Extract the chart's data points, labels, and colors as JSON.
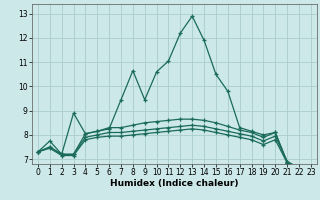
{
  "xlabel": "Humidex (Indice chaleur)",
  "bg_color": "#cce8e8",
  "grid_color": "#aacccc",
  "line_color": "#1a6b5a",
  "xlim": [
    -0.5,
    23.5
  ],
  "ylim": [
    6.8,
    13.4
  ],
  "yticks": [
    7,
    8,
    9,
    10,
    11,
    12,
    13
  ],
  "xticks": [
    0,
    1,
    2,
    3,
    4,
    5,
    6,
    7,
    8,
    9,
    10,
    11,
    12,
    13,
    14,
    15,
    16,
    17,
    18,
    19,
    20,
    21,
    22,
    23
  ],
  "series": [
    [
      7.3,
      7.75,
      7.2,
      8.9,
      8.05,
      8.15,
      8.25,
      9.45,
      10.65,
      9.45,
      10.6,
      11.05,
      12.2,
      12.9,
      11.9,
      10.5,
      9.8,
      8.3,
      8.15,
      8.0,
      8.1,
      6.85,
      6.65,
      6.65
    ],
    [
      7.3,
      7.5,
      7.2,
      7.2,
      8.05,
      8.15,
      8.3,
      8.3,
      8.4,
      8.5,
      8.55,
      8.6,
      8.65,
      8.65,
      8.6,
      8.5,
      8.35,
      8.2,
      8.1,
      7.9,
      8.1,
      6.9,
      6.65,
      6.65
    ],
    [
      7.3,
      7.5,
      7.2,
      7.2,
      7.9,
      8.0,
      8.1,
      8.1,
      8.15,
      8.2,
      8.25,
      8.3,
      8.35,
      8.4,
      8.35,
      8.25,
      8.15,
      8.05,
      7.95,
      7.75,
      7.95,
      6.9,
      6.6,
      6.6
    ],
    [
      7.3,
      7.45,
      7.15,
      7.15,
      7.8,
      7.9,
      7.95,
      7.95,
      8.0,
      8.05,
      8.1,
      8.15,
      8.2,
      8.25,
      8.2,
      8.1,
      8.0,
      7.9,
      7.8,
      7.6,
      7.8,
      6.85,
      6.55,
      6.55
    ]
  ]
}
